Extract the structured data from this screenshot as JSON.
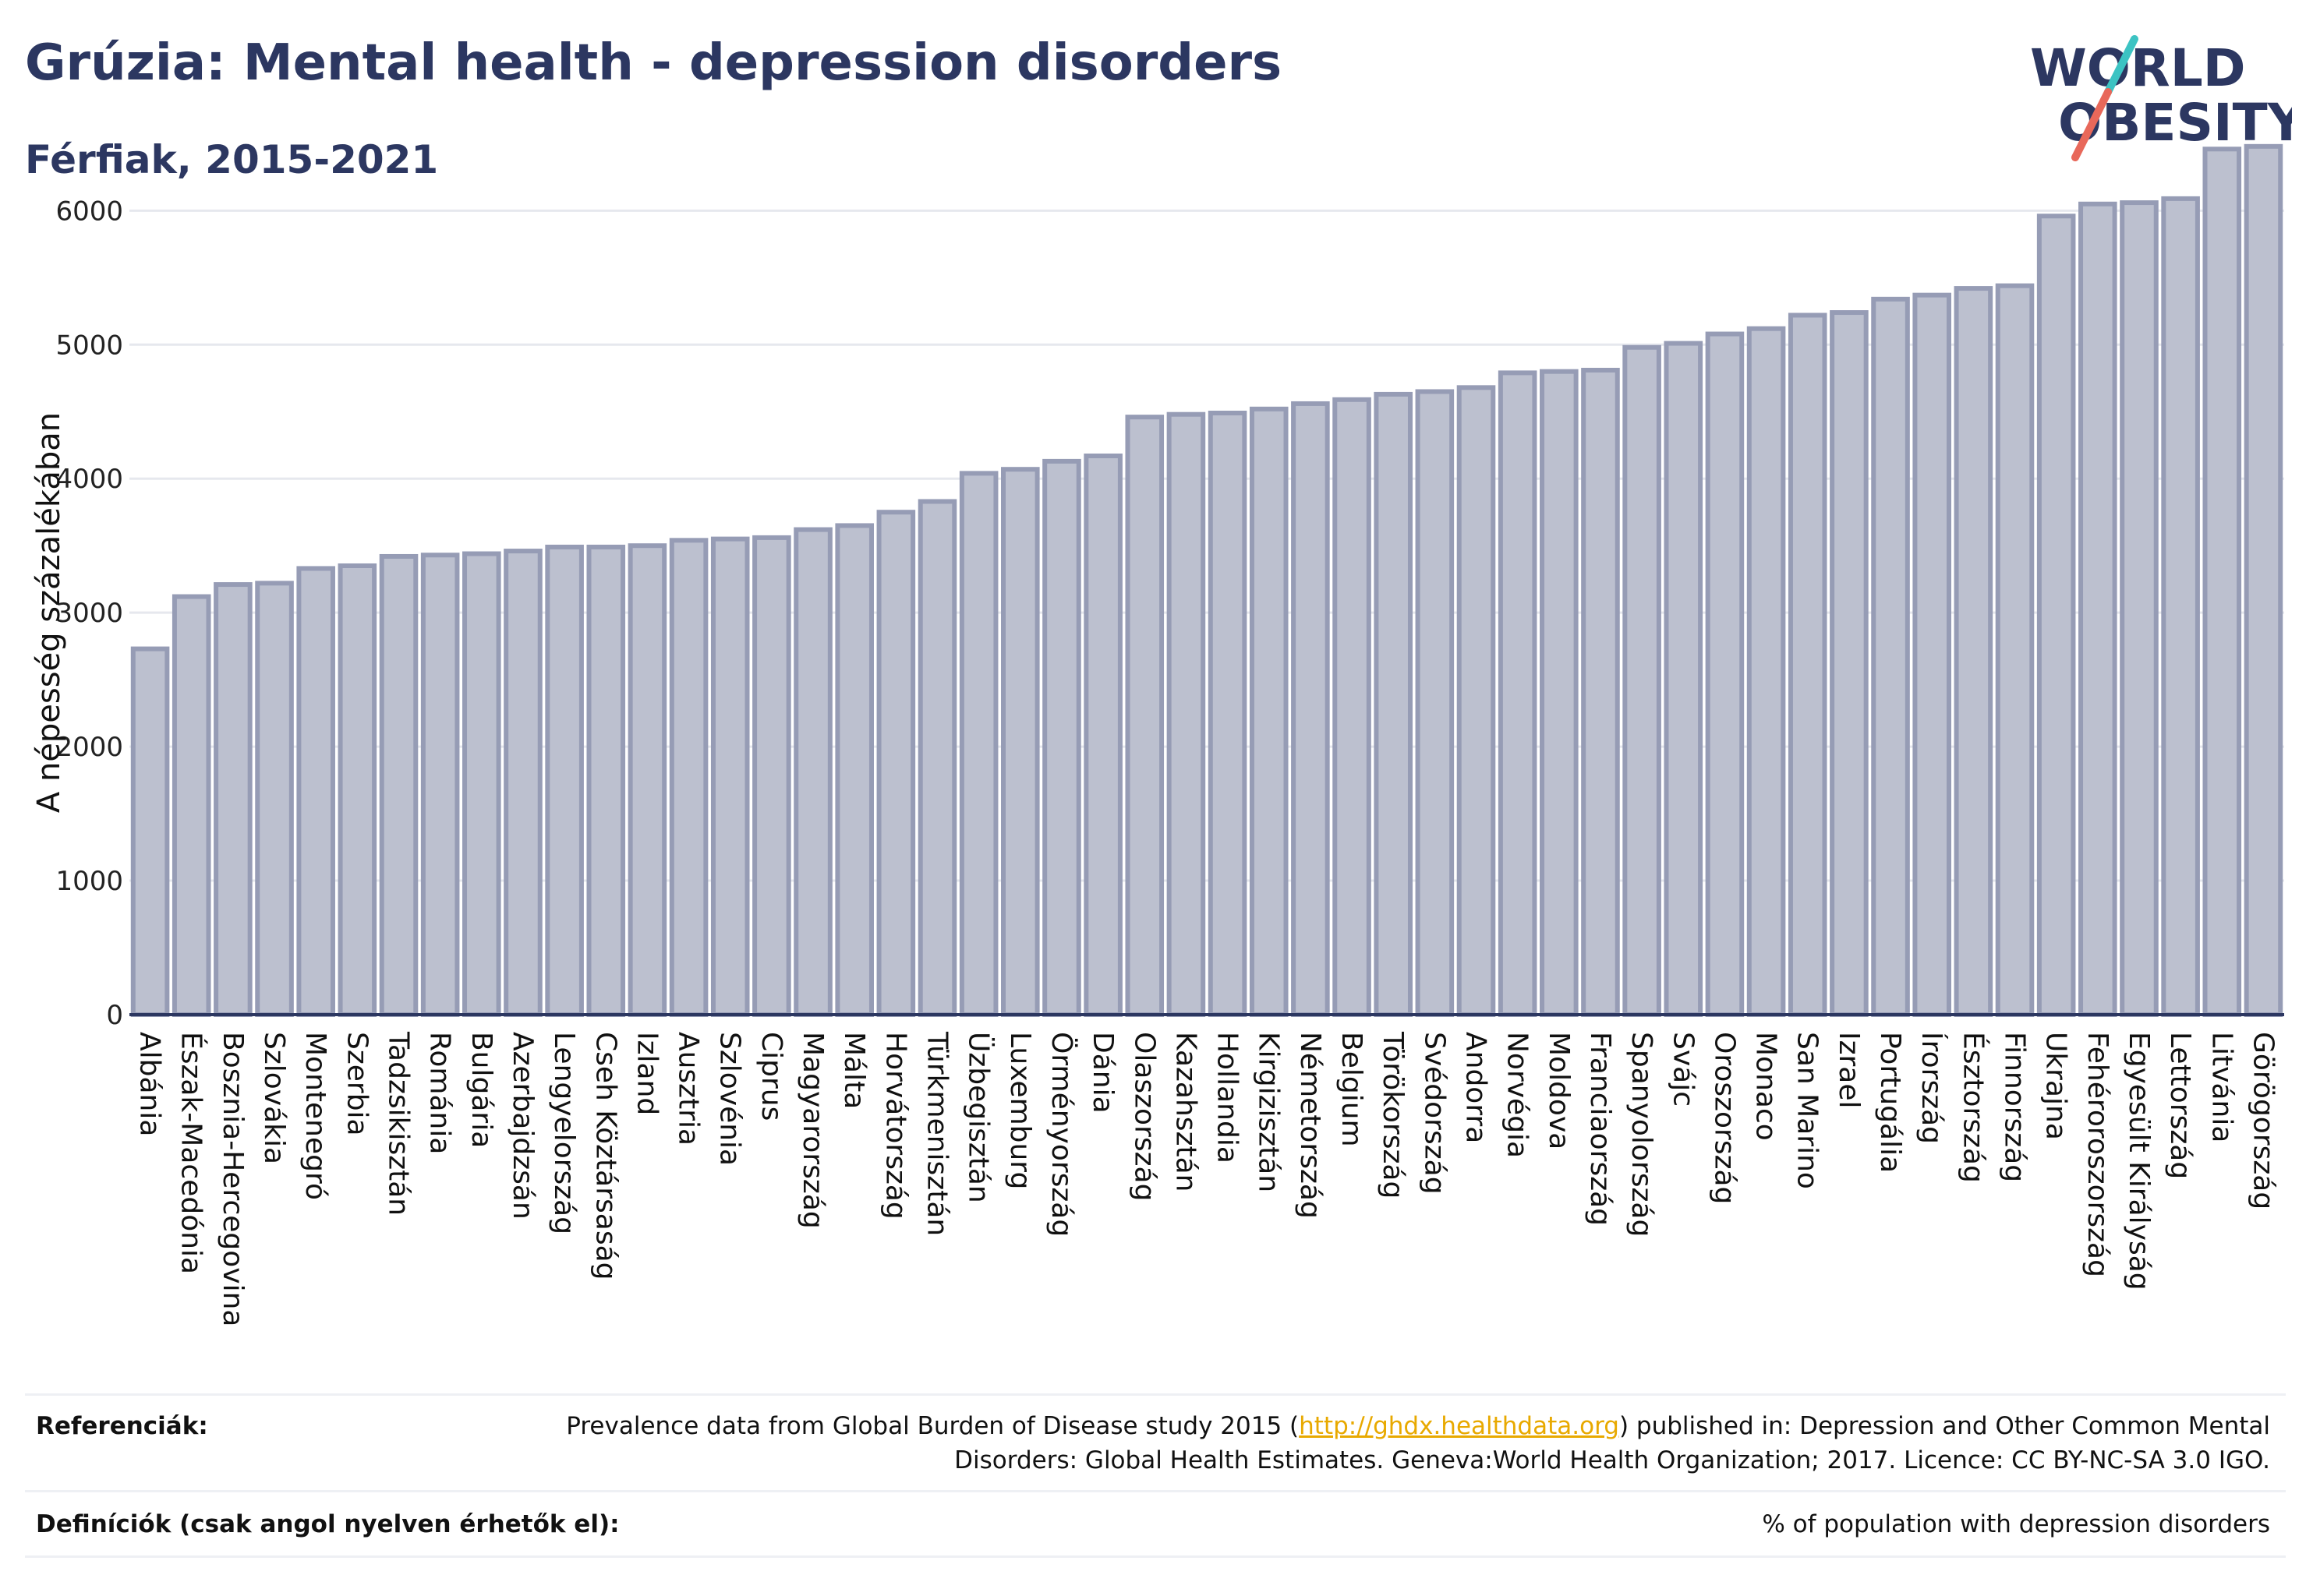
{
  "header": {
    "title": "Grúzia: Mental health - depression disorders",
    "subtitle": "Férfiak, 2015-2021"
  },
  "logo": {
    "line1": "WORLD",
    "line2": "OBESITY",
    "colors": {
      "text": "#2c3761",
      "slash_top": "#3cc3c3",
      "slash_bottom": "#e8685a"
    }
  },
  "chart_data": {
    "type": "bar",
    "ylabel": "A népesség százalékában",
    "ylim": [
      0,
      6700
    ],
    "yticks": [
      0,
      1000,
      2000,
      3000,
      4000,
      5000,
      6000
    ],
    "grid": true,
    "bar_color": "#bcc0cf",
    "bar_edge_color": "#969cb5",
    "categories": [
      "Albánia",
      "Észak-Macedónia",
      "Bosznia-Hercegovina",
      "Szlovákia",
      "Montenegró",
      "Szerbia",
      "Tadzsikisztán",
      "Románia",
      "Bulgária",
      "Azerbajdzsán",
      "Lengyelország",
      "Cseh Köztársaság",
      "Izland",
      "Ausztria",
      "Szlovénia",
      "Ciprus",
      "Magyarország",
      "Málta",
      "Horvátország",
      "Türkmenisztán",
      "Üzbegisztán",
      "Luxemburg",
      "Örményország",
      "Dánia",
      "Olaszország",
      "Kazahsztán",
      "Hollandia",
      "Kirgizisztán",
      "Németország",
      "Belgium",
      "Törökország",
      "Svédország",
      "Andorra",
      "Norvégia",
      "Moldova",
      "Franciaország",
      "Spanyolország",
      "Svájc",
      "Oroszország",
      "Monaco",
      "San Marino",
      "Izrael",
      "Portugália",
      "Írország",
      "Észtország",
      "Finnország",
      "Ukrajna",
      "Fehéroroszország",
      "Egyesült Királyság",
      "Lettország",
      "Litvánia",
      "Görögország"
    ],
    "values": [
      2730,
      3120,
      3210,
      3220,
      3330,
      3350,
      3420,
      3430,
      3440,
      3460,
      3490,
      3490,
      3500,
      3540,
      3550,
      3560,
      3620,
      3650,
      3750,
      3830,
      4040,
      4070,
      4130,
      4170,
      4460,
      4480,
      4490,
      4520,
      4560,
      4590,
      4630,
      4650,
      4680,
      4790,
      4800,
      4810,
      4980,
      5010,
      5080,
      5120,
      5220,
      5240,
      5340,
      5370,
      5420,
      5440,
      5960,
      6050,
      6060,
      6090,
      6460,
      6480
    ]
  },
  "footer": {
    "ref_label": "Referenciák:",
    "ref_before": "Prevalence data from Global Burden of Disease study 2015 (",
    "ref_link": "http://ghdx.healthdata.org",
    "ref_after": ") published in: Depression and Other Common Mental Disorders: Global Health Estimates. Geneva:World Health Organization; 2017. Licence: CC BY-NC-SA 3.0 IGO.",
    "def_label": "Definíciók (csak angol nyelven érhetők el):",
    "def_text": "% of population with depression disorders"
  }
}
